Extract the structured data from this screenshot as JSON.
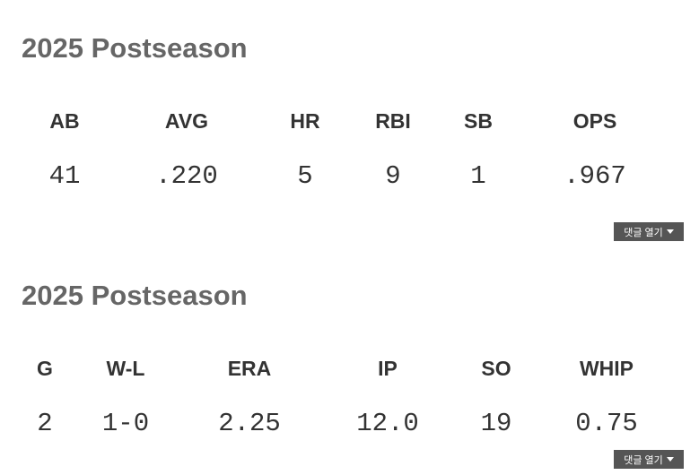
{
  "batting": {
    "title": "2025 Postseason",
    "columns": [
      {
        "label": "AB",
        "value": "41"
      },
      {
        "label": "AVG",
        "value": ".220"
      },
      {
        "label": "HR",
        "value": "5"
      },
      {
        "label": "RBI",
        "value": "9"
      },
      {
        "label": "SB",
        "value": "1"
      },
      {
        "label": "OPS",
        "value": ".967"
      }
    ],
    "comments_button": "댓글 열기",
    "comments_icon": "caret-down-icon"
  },
  "pitching": {
    "title": "2025 Postseason",
    "columns": [
      {
        "label": "G",
        "value": "2"
      },
      {
        "label": "W-L",
        "value": "1-0"
      },
      {
        "label": "ERA",
        "value": "2.25"
      },
      {
        "label": "IP",
        "value": "12.0"
      },
      {
        "label": "SO",
        "value": "19"
      },
      {
        "label": "WHIP",
        "value": "0.75"
      }
    ],
    "comments_button": "댓글 열기",
    "comments_icon": "caret-down-icon"
  }
}
